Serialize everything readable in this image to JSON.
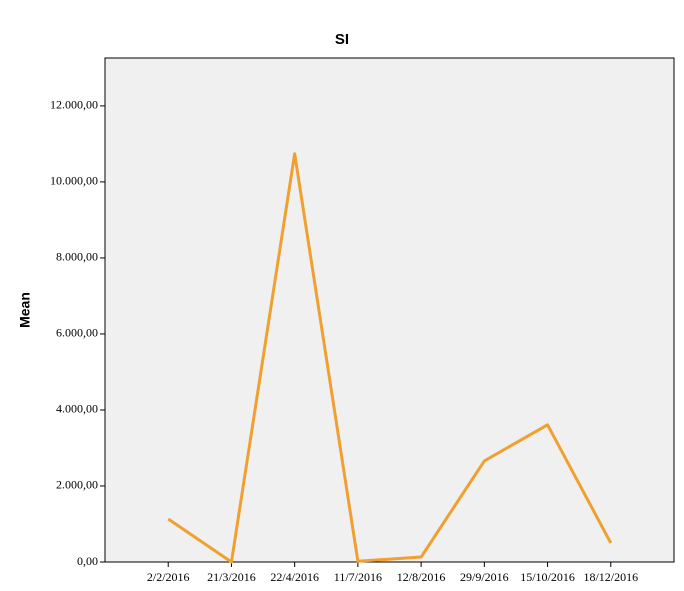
{
  "chart_data": {
    "type": "line",
    "title": "SI",
    "y_label": "Mean",
    "categories": [
      "2/2/2016",
      "21/3/2016",
      "22/4/2016",
      "11/7/2016",
      "12/8/2016",
      "29/9/2016",
      "15/10/2016",
      "18/12/2016"
    ],
    "values": [
      1130,
      0,
      10740,
      20,
      130,
      2660,
      3610,
      500
    ],
    "color": "#f0a030",
    "ylim": [
      0,
      13260
    ],
    "yticks": [
      {
        "value": 0,
        "label": "0,00"
      },
      {
        "value": 2000,
        "label": "2.000,00"
      },
      {
        "value": 4000,
        "label": "4.000,00"
      },
      {
        "value": 6000,
        "label": "6.000,00"
      },
      {
        "value": 8000,
        "label": "8.000,00"
      },
      {
        "value": 10000,
        "label": "10.000,00"
      },
      {
        "value": 12000,
        "label": "12.000,00"
      }
    ]
  }
}
